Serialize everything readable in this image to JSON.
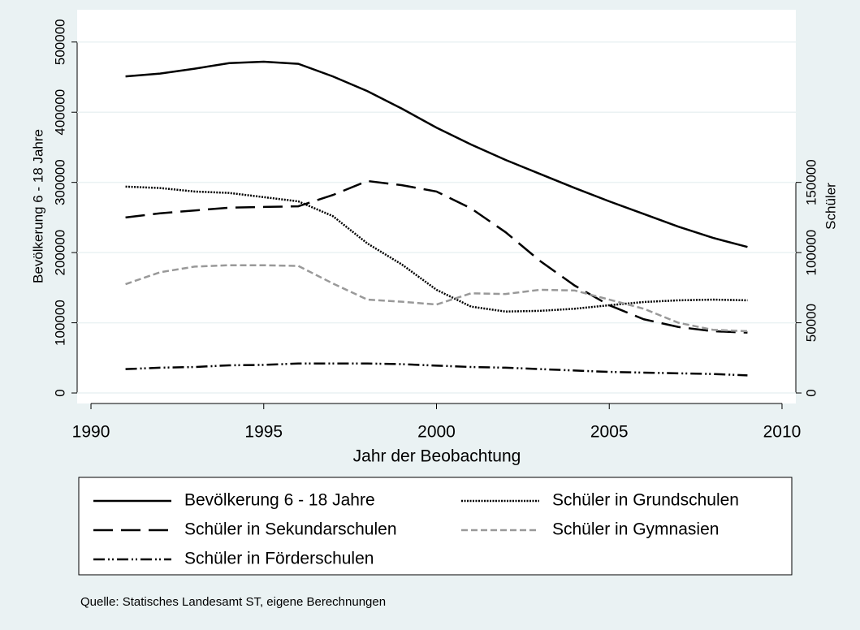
{
  "chart_data": {
    "type": "line",
    "x_label": "Jahr der Beobachtung",
    "y_label": "Bevölkerung 6 - 18 Jahre",
    "y2_label": "Schüler",
    "note": "Quelle: Statisches Landesamt ST, eigene Berechnungen",
    "x": [
      1991,
      1992,
      1993,
      1994,
      1995,
      1996,
      1997,
      1998,
      1999,
      2000,
      2001,
      2002,
      2003,
      2004,
      2005,
      2006,
      2007,
      2008,
      2009
    ],
    "xlim": [
      1989.6,
      2010.4
    ],
    "xticks": [
      1990,
      1995,
      2000,
      2005,
      2010
    ],
    "ylim": [
      -15000,
      546000
    ],
    "yticks": [
      0,
      100000,
      200000,
      300000,
      400000,
      500000
    ],
    "y2lim": [
      -7500,
      273000
    ],
    "y2ticks": [
      0,
      50000,
      100000,
      150000
    ],
    "grid": true,
    "series": [
      {
        "name": "Bevölkerung 6 - 18 Jahre",
        "color": "#000000",
        "dash": "solid",
        "values": [
          451000,
          455000,
          462000,
          470000,
          472000,
          469000,
          451000,
          430000,
          405000,
          378000,
          354000,
          332000,
          312000,
          292000,
          273000,
          255000,
          237000,
          221000,
          208000
        ]
      },
      {
        "name": "Schüler in Grundschulen",
        "color": "#000000",
        "dash": "dot",
        "axis": "y2",
        "values": [
          147000,
          146000,
          143500,
          142500,
          139500,
          136500,
          126000,
          106500,
          91500,
          73500,
          61500,
          58000,
          58500,
          60000,
          62500,
          64800,
          66000,
          66500,
          66000
        ]
      },
      {
        "name": "Schüler in Sekundarschulen",
        "color": "#000000",
        "dash": "longdash",
        "axis": "y2",
        "values": [
          125000,
          128000,
          130000,
          132000,
          132500,
          133000,
          141000,
          151000,
          148000,
          143500,
          131500,
          114500,
          94000,
          76500,
          62500,
          52500,
          47000,
          44000,
          43000
        ]
      },
      {
        "name": "Schüler in Gymnasien",
        "color": "#999999",
        "dash": "shortdash",
        "axis": "y2",
        "values": [
          77500,
          86000,
          90000,
          91000,
          91000,
          90500,
          78000,
          66500,
          65000,
          63000,
          71000,
          70500,
          73500,
          73000,
          66500,
          60000,
          50000,
          45000,
          44000
        ]
      },
      {
        "name": "Schüler in Förderschulen",
        "color": "#000000",
        "dash": "dashdotdot",
        "axis": "y2",
        "values": [
          17000,
          18000,
          18500,
          19700,
          20000,
          21000,
          21000,
          21000,
          20500,
          19500,
          18500,
          18000,
          17000,
          16000,
          15000,
          14500,
          14000,
          13500,
          12500
        ]
      }
    ]
  }
}
